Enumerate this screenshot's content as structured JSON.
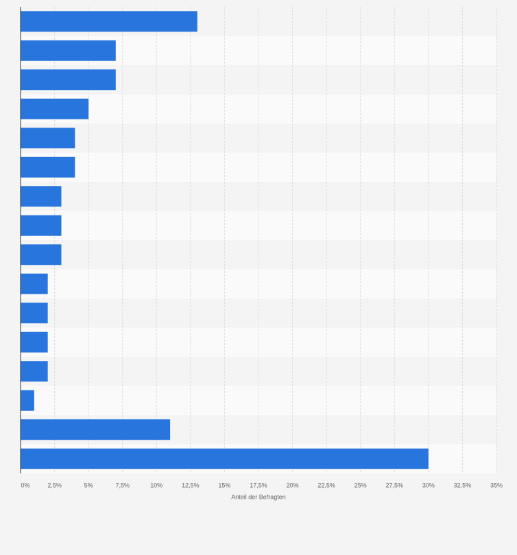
{
  "chart_data": {
    "type": "barh",
    "categories": [
      null,
      null,
      null,
      null,
      null,
      null,
      null,
      null,
      null,
      null,
      null,
      null,
      null,
      null,
      null,
      null
    ],
    "values": [
      13,
      7,
      7,
      5,
      4,
      4,
      3,
      3,
      3,
      2,
      2,
      2,
      2,
      1,
      11,
      30
    ],
    "color": "#2876dd",
    "xlabel": "Anteil der Befragten",
    "xlim": [
      0,
      35
    ],
    "xticks": [
      {
        "value": 0,
        "label": "0%"
      },
      {
        "value": 2.5,
        "label": "2,5%"
      },
      {
        "value": 5,
        "label": "5%"
      },
      {
        "value": 7.5,
        "label": "7,5%"
      },
      {
        "value": 10,
        "label": "10%"
      },
      {
        "value": 12.5,
        "label": "12,5%"
      },
      {
        "value": 15,
        "label": "15%"
      },
      {
        "value": 17.5,
        "label": "17,5%"
      },
      {
        "value": 20,
        "label": "20%"
      },
      {
        "value": 22.5,
        "label": "22,5%"
      },
      {
        "value": 25,
        "label": "25%"
      },
      {
        "value": 27.5,
        "label": "27,5%"
      },
      {
        "value": 30,
        "label": "30%"
      },
      {
        "value": 32.5,
        "label": "32,5%"
      },
      {
        "value": 35,
        "label": "35%"
      }
    ],
    "grid": true
  }
}
